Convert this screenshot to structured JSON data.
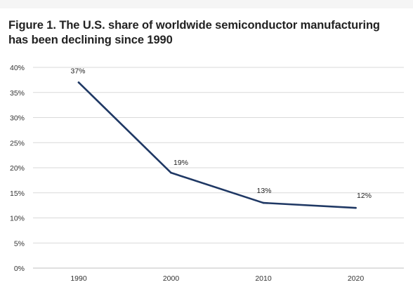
{
  "figure": {
    "title": "Figure 1. The U.S. share of worldwide semiconductor manufacturing has been declining since 1990"
  },
  "colors": {
    "line": "#1f3864",
    "grid": "#d9d9d9",
    "axis": "#bfbfbf"
  },
  "chart_data": {
    "type": "line",
    "title": "Figure 1. The U.S. share of worldwide semiconductor manufacturing has been declining since 1990",
    "xlabel": "",
    "ylabel": "",
    "categories": [
      "1990",
      "2000",
      "2010",
      "2020"
    ],
    "series": [
      {
        "values": [
          37,
          19,
          13,
          12
        ]
      }
    ],
    "data_labels": [
      "37%",
      "19%",
      "13%",
      "12%"
    ],
    "y_ticks": [
      "0%",
      "5%",
      "10%",
      "15%",
      "20%",
      "25%",
      "30%",
      "35%",
      "40%"
    ],
    "ylim": [
      0,
      40
    ],
    "grid": true,
    "legend": "none"
  }
}
